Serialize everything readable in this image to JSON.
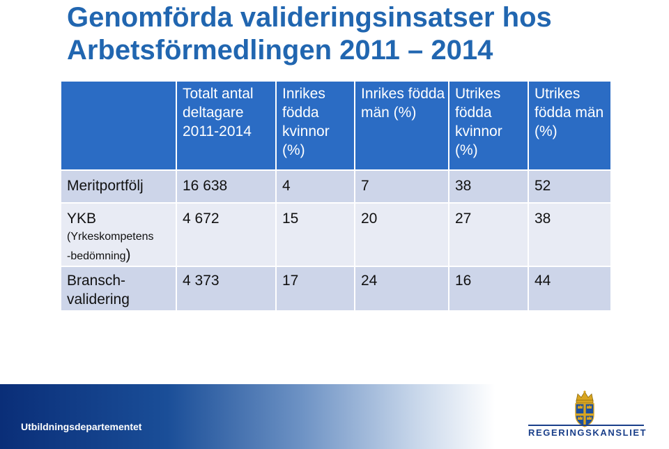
{
  "title": {
    "line1": "Genomförda valideringsinsatser hos",
    "line2": "Arbetsförmedlingen 2011 – 2014"
  },
  "table": {
    "headers": [
      "",
      "Totalt antal deltagare 2011-2014",
      "Inrikes födda kvinnor (%)",
      "Inrikes födda män (%)",
      "Utrikes födda kvinnor (%)",
      "Utrikes födda män (%)"
    ],
    "rows": [
      {
        "label": "Meritportfölj",
        "sublabel": "",
        "values": [
          "16 638",
          "4",
          "7",
          "38",
          "52"
        ]
      },
      {
        "label": "YKB",
        "sublabel": "(Yrkeskompetens -bedömning)",
        "sublabel_line1": "(Yrkeskompetens",
        "sublabel_line2": "-bedömning",
        "sublabel_close": ")",
        "values": [
          "4 672",
          "15",
          "20",
          "27",
          "38"
        ]
      },
      {
        "label": "Bransch-validering",
        "label_line1": "Bransch-",
        "label_line2": "validering",
        "values": [
          "4 373",
          "17",
          "24",
          "16",
          "44"
        ]
      }
    ]
  },
  "footer": {
    "department": "Utbildningsdepartementet",
    "logo_text": "REGERINGSKANSLIET",
    "logo_icon": "crown-shield-icon"
  },
  "colors": {
    "title": "#2166b0",
    "header_bg": "#2b6cc4",
    "row_dark": "#cdd5e9",
    "row_light": "#e8ebf4",
    "logo": "#1a3f8a"
  }
}
